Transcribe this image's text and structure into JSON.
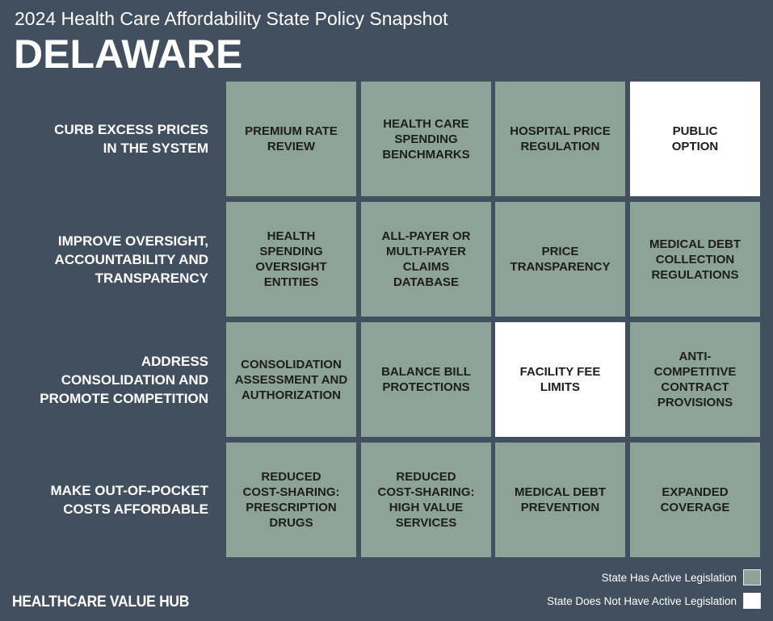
{
  "header": {
    "subtitle": "2024 Health Care Affordability State Policy Snapshot",
    "state": "DELAWARE"
  },
  "colors": {
    "background": "#424f5f",
    "active": "#8ea397",
    "not_active": "#ffffff"
  },
  "rows": [
    {
      "label_lines": [
        "CURB EXCESS PRICES",
        "IN THE SYSTEM"
      ],
      "tiles": [
        {
          "lines": [
            "PREMIUM RATE",
            "REVIEW"
          ],
          "status": "active"
        },
        {
          "lines": [
            "HEALTH CARE",
            "SPENDING",
            "BENCHMARKS"
          ],
          "status": "active"
        },
        {
          "lines": [
            "HOSPITAL PRICE",
            "REGULATION"
          ],
          "status": "active"
        },
        {
          "lines": [
            "PUBLIC",
            "OPTION"
          ],
          "status": "not_active"
        }
      ]
    },
    {
      "label_lines": [
        "IMPROVE OVERSIGHT,",
        "ACCOUNTABILITY AND",
        "TRANSPARENCY"
      ],
      "tiles": [
        {
          "lines": [
            "HEALTH",
            "SPENDING",
            "OVERSIGHT",
            "ENTITIES"
          ],
          "status": "active"
        },
        {
          "lines": [
            "ALL-PAYER OR",
            "MULTI-PAYER",
            "CLAIMS",
            "DATABASE"
          ],
          "status": "active"
        },
        {
          "lines": [
            "PRICE",
            "TRANSPARENCY"
          ],
          "status": "active"
        },
        {
          "lines": [
            "MEDICAL DEBT",
            "COLLECTION",
            "REGULATIONS"
          ],
          "status": "active"
        }
      ]
    },
    {
      "label_lines": [
        "ADDRESS",
        "CONSOLIDATION AND",
        "PROMOTE COMPETITION"
      ],
      "tiles": [
        {
          "lines": [
            "CONSOLIDATION",
            "ASSESSMENT AND",
            "AUTHORIZATION"
          ],
          "status": "active"
        },
        {
          "lines": [
            "BALANCE BILL",
            "PROTECTIONS"
          ],
          "status": "active"
        },
        {
          "lines": [
            "FACILITY FEE",
            "LIMITS"
          ],
          "status": "not_active"
        },
        {
          "lines": [
            "ANTI-",
            "COMPETITIVE",
            "CONTRACT",
            "PROVISIONS"
          ],
          "status": "active"
        }
      ]
    },
    {
      "label_lines": [
        "MAKE OUT-OF-POCKET",
        "COSTS AFFORDABLE"
      ],
      "tiles": [
        {
          "lines": [
            "REDUCED",
            "COST-SHARING:",
            "PRESCRIPTION",
            "DRUGS"
          ],
          "status": "active"
        },
        {
          "lines": [
            "REDUCED",
            "COST-SHARING:",
            "HIGH VALUE",
            "SERVICES"
          ],
          "status": "active"
        },
        {
          "lines": [
            "MEDICAL DEBT",
            "PREVENTION"
          ],
          "status": "active"
        },
        {
          "lines": [
            "EXPANDED",
            "COVERAGE"
          ],
          "status": "active"
        }
      ]
    }
  ],
  "footer": {
    "logo": "HEALTHCARE VALUE HUB"
  },
  "legend": [
    {
      "label": "State Has Active Legislation",
      "status": "active"
    },
    {
      "label": "State Does Not Have Active Legislation",
      "status": "not_active"
    }
  ]
}
